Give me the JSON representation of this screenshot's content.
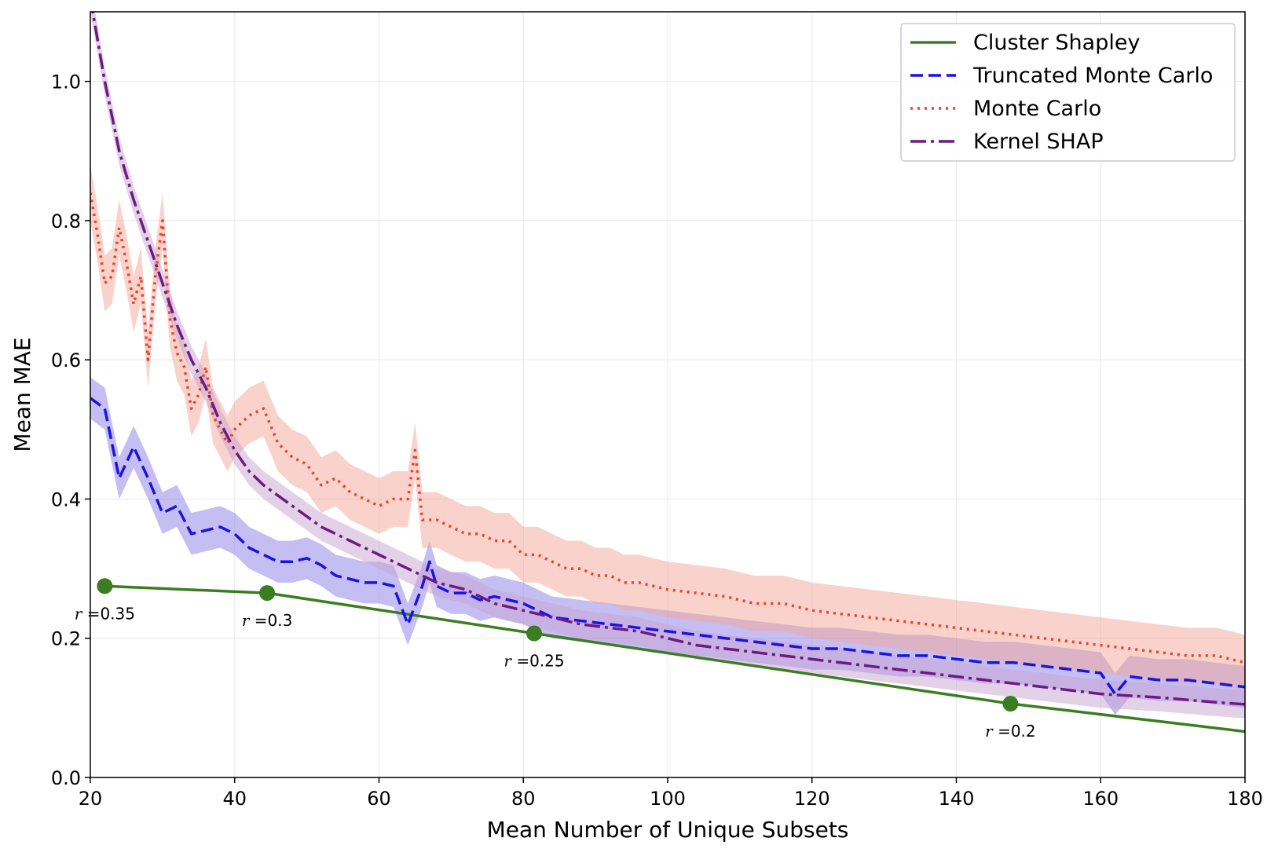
{
  "chart_data": {
    "type": "line",
    "title": "",
    "xlabel": "Mean Number of Unique Subsets",
    "ylabel": "Mean MAE",
    "xlim": [
      20,
      180
    ],
    "ylim": [
      0.0,
      1.1
    ],
    "grid": true,
    "legend_position": "top-right",
    "xticks": [
      20,
      40,
      60,
      80,
      100,
      120,
      140,
      160,
      180
    ],
    "xtick_labels": [
      "20",
      "40",
      "60",
      "80",
      "100",
      "120",
      "140",
      "160",
      "180"
    ],
    "yticks": [
      0.0,
      0.2,
      0.4,
      0.6,
      0.8,
      1.0
    ],
    "ytick_labels": [
      "0.0",
      "0.2",
      "0.4",
      "0.6",
      "0.8",
      "1.0"
    ],
    "series": [
      {
        "name": "Cluster Shapley",
        "style": "solid",
        "color": "#3a7d22",
        "x": [
          22,
          44.5,
          81.5,
          147.5,
          180
        ],
        "y": [
          0.275,
          0.265,
          0.207,
          0.106,
          0.066
        ],
        "markers": [
          {
            "x": 22,
            "y": 0.275
          },
          {
            "x": 44.5,
            "y": 0.265
          },
          {
            "x": 81.5,
            "y": 0.207
          },
          {
            "x": 147.5,
            "y": 0.106
          }
        ]
      },
      {
        "name": "Truncated Monte Carlo",
        "style": "dashed",
        "color": "#1a12e6",
        "band_color": "#8a7ee8",
        "x": [
          20,
          22,
          24,
          26,
          28,
          30,
          32,
          34,
          36,
          38,
          40,
          42,
          44,
          46,
          48,
          50,
          52,
          54,
          56,
          58,
          60,
          62,
          64,
          66,
          67,
          68,
          70,
          72,
          74,
          76,
          78,
          80,
          84,
          88,
          92,
          96,
          100,
          104,
          108,
          112,
          116,
          120,
          124,
          128,
          132,
          136,
          140,
          144,
          148,
          152,
          156,
          160,
          162,
          164,
          168,
          172,
          176,
          180
        ],
        "y": [
          0.545,
          0.53,
          0.43,
          0.475,
          0.43,
          0.38,
          0.39,
          0.35,
          0.355,
          0.36,
          0.35,
          0.33,
          0.32,
          0.31,
          0.31,
          0.315,
          0.305,
          0.29,
          0.285,
          0.28,
          0.28,
          0.275,
          0.22,
          0.275,
          0.31,
          0.275,
          0.265,
          0.265,
          0.255,
          0.26,
          0.255,
          0.25,
          0.23,
          0.225,
          0.22,
          0.215,
          0.21,
          0.205,
          0.2,
          0.195,
          0.19,
          0.185,
          0.185,
          0.18,
          0.175,
          0.175,
          0.17,
          0.165,
          0.165,
          0.16,
          0.155,
          0.15,
          0.12,
          0.145,
          0.14,
          0.14,
          0.135,
          0.13
        ],
        "band": 0.03
      },
      {
        "name": "Monte Carlo",
        "style": "dotted",
        "color": "#e8432a",
        "band_color": "#f4a598",
        "x": [
          20,
          21,
          22,
          23,
          24,
          25,
          26,
          27,
          28,
          29,
          30,
          31,
          32,
          33,
          34,
          35,
          36,
          37,
          38,
          39,
          40,
          42,
          44,
          46,
          48,
          50,
          52,
          54,
          56,
          58,
          60,
          62,
          64,
          65,
          66,
          68,
          70,
          72,
          74,
          76,
          78,
          80,
          82,
          84,
          86,
          88,
          90,
          92,
          94,
          96,
          100,
          104,
          108,
          112,
          116,
          120,
          124,
          128,
          132,
          136,
          140,
          144,
          148,
          152,
          156,
          160,
          164,
          168,
          172,
          176,
          180
        ],
        "y": [
          0.84,
          0.78,
          0.71,
          0.72,
          0.79,
          0.74,
          0.68,
          0.72,
          0.6,
          0.72,
          0.8,
          0.66,
          0.61,
          0.59,
          0.53,
          0.55,
          0.59,
          0.52,
          0.5,
          0.48,
          0.5,
          0.52,
          0.53,
          0.48,
          0.46,
          0.45,
          0.42,
          0.43,
          0.41,
          0.4,
          0.39,
          0.4,
          0.4,
          0.47,
          0.37,
          0.37,
          0.36,
          0.35,
          0.35,
          0.34,
          0.34,
          0.32,
          0.32,
          0.31,
          0.3,
          0.3,
          0.29,
          0.29,
          0.28,
          0.28,
          0.27,
          0.265,
          0.26,
          0.25,
          0.25,
          0.24,
          0.235,
          0.23,
          0.225,
          0.22,
          0.215,
          0.21,
          0.205,
          0.2,
          0.195,
          0.19,
          0.185,
          0.18,
          0.175,
          0.175,
          0.165
        ],
        "band": 0.04
      },
      {
        "name": "Kernel SHAP",
        "style": "dashdot",
        "color": "#6e1a80",
        "band_color": "#c8a3d2",
        "x": [
          20,
          21,
          22,
          24,
          26,
          28,
          30,
          32,
          34,
          36,
          38,
          40,
          42,
          44,
          48,
          52,
          56,
          60,
          64,
          68,
          72,
          76,
          80,
          88,
          96,
          104,
          112,
          120,
          128,
          136,
          144,
          152,
          160,
          168,
          176,
          180
        ],
        "y": [
          1.12,
          1.06,
          1.0,
          0.9,
          0.83,
          0.77,
          0.71,
          0.65,
          0.6,
          0.56,
          0.51,
          0.47,
          0.44,
          0.42,
          0.39,
          0.36,
          0.34,
          0.32,
          0.3,
          0.28,
          0.27,
          0.25,
          0.24,
          0.22,
          0.21,
          0.19,
          0.18,
          0.17,
          0.16,
          0.15,
          0.14,
          0.13,
          0.12,
          0.115,
          0.108,
          0.105
        ],
        "band": 0.02
      }
    ],
    "annotations": [
      {
        "r": "r",
        "text": "=0.35",
        "x": 22,
        "y": 0.275
      },
      {
        "r": "r",
        "text": "=0.3",
        "x": 44.5,
        "y": 0.265
      },
      {
        "r": "r",
        "text": "=0.25",
        "x": 81.5,
        "y": 0.207
      },
      {
        "r": "r",
        "text": "=0.2",
        "x": 147.5,
        "y": 0.106
      }
    ]
  }
}
